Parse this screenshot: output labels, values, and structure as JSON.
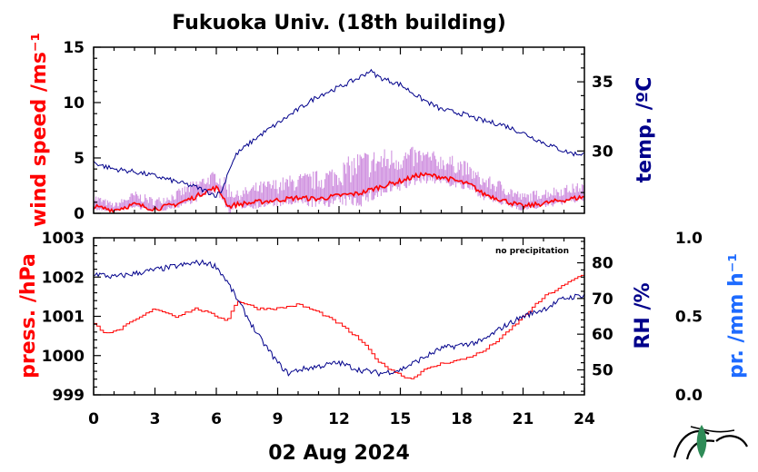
{
  "colors": {
    "wind_mean": "#ff0000",
    "wind_gust": "#cc88dd",
    "temperature": "#00008b",
    "pressure": "#ff0000",
    "humidity": "#00008b",
    "precip": "#1e6bff",
    "logo": "#2e8b57"
  },
  "chart_data": [
    {
      "type": "line",
      "title": "Fukuoka Univ. (18th building)",
      "xlim": [
        0,
        24
      ],
      "left_axis": {
        "label": "wind speed /ms⁻¹",
        "ylim": [
          0,
          15
        ],
        "ticks": [
          0,
          5,
          10,
          15
        ]
      },
      "right_axis": {
        "label": "temp. /ºC",
        "ylim": [
          25.5,
          37.5
        ],
        "ticks": [
          30,
          35
        ]
      },
      "series": [
        {
          "axis": "left",
          "role": "wind_mean",
          "x": [
            0,
            1,
            2,
            3,
            4,
            5,
            5.5,
            6,
            6.3,
            6.6,
            7,
            8,
            9,
            10,
            11,
            12,
            13,
            14,
            15,
            16,
            17,
            18,
            18.5,
            19,
            20,
            21,
            22,
            23,
            24
          ],
          "values": [
            0.6,
            0.3,
            0.8,
            0.4,
            0.8,
            1.5,
            2.0,
            2.3,
            1.6,
            0.6,
            0.8,
            1.0,
            1.2,
            1.4,
            1.3,
            1.6,
            1.8,
            2.4,
            2.9,
            3.5,
            3.3,
            2.8,
            2.5,
            1.8,
            1.2,
            0.6,
            0.9,
            1.2,
            1.5
          ]
        },
        {
          "axis": "left",
          "role": "wind_gust",
          "x": [
            0,
            1,
            2,
            3,
            4,
            5,
            6,
            7,
            8,
            9,
            10,
            11,
            12,
            13,
            14,
            15,
            16,
            17,
            18,
            19,
            20,
            21,
            22,
            23,
            24
          ],
          "values": [
            1.6,
            0.8,
            1.8,
            1.2,
            1.8,
            2.8,
            3.6,
            1.8,
            2.5,
            2.8,
            3.2,
            3.4,
            4.0,
            5.0,
            5.2,
            5.4,
            5.5,
            5.0,
            4.6,
            3.2,
            2.6,
            1.6,
            2.0,
            2.3,
            2.6
          ]
        },
        {
          "axis": "right",
          "role": "temperature",
          "x": [
            0,
            0.5,
            1,
            2,
            3,
            4,
            5,
            5.5,
            6,
            6.3,
            6.6,
            7,
            8,
            9,
            10,
            11,
            12,
            13,
            13.5,
            14,
            15,
            16,
            17,
            18,
            19,
            20,
            21,
            22,
            23,
            23.5,
            24
          ],
          "values": [
            29.2,
            28.9,
            28.7,
            28.5,
            28.2,
            27.8,
            27.4,
            27.1,
            26.8,
            27.2,
            28.6,
            29.8,
            31.0,
            32.0,
            33.0,
            34.0,
            34.6,
            35.3,
            35.8,
            35.3,
            34.8,
            33.8,
            33.0,
            32.7,
            32.2,
            31.9,
            31.3,
            30.6,
            30.0,
            29.8,
            29.8
          ]
        }
      ]
    },
    {
      "type": "line",
      "xlabel": "02 Aug 2024",
      "xlim": [
        0,
        24
      ],
      "xticks": [
        0,
        3,
        6,
        9,
        12,
        15,
        18,
        21,
        24
      ],
      "annotation": "no precipitation",
      "left_axis": {
        "label": "press. /hPa",
        "ylim": [
          999,
          1003
        ],
        "ticks": [
          999,
          1000,
          1001,
          1002,
          1003
        ]
      },
      "right_axis": {
        "label": "RH /%",
        "ylim": [
          43,
          87
        ],
        "ticks": [
          50,
          60,
          70,
          80
        ]
      },
      "far_right_axis": {
        "label": "pr. /mm h⁻¹",
        "ylim": [
          0.0,
          1.0
        ],
        "ticks": [
          "0.0",
          "0.5",
          "1.0"
        ]
      },
      "series": [
        {
          "axis": "left",
          "role": "pressure",
          "x": [
            0,
            0.5,
            1,
            2,
            3,
            4,
            5,
            6,
            6.5,
            7,
            8,
            9,
            10,
            11,
            12,
            13,
            14,
            15,
            15.5,
            16,
            17,
            18,
            19,
            20,
            21,
            22,
            23,
            24
          ],
          "values": [
            1000.8,
            1000.6,
            1000.6,
            1000.9,
            1001.2,
            1001.0,
            1001.2,
            1001.0,
            1000.9,
            1001.4,
            1001.2,
            1001.2,
            1001.3,
            1001.1,
            1000.8,
            1000.4,
            999.8,
            999.5,
            999.4,
            999.6,
            999.8,
            999.9,
            1000.1,
            1000.5,
            1001.0,
            1001.5,
            1001.8,
            1002.1
          ]
        },
        {
          "axis": "right",
          "role": "humidity",
          "x": [
            0,
            1,
            2,
            3,
            4,
            5,
            5.5,
            6,
            6.5,
            7,
            8,
            9,
            9.5,
            10,
            11,
            12,
            13,
            14,
            15,
            16,
            17,
            18,
            19,
            20,
            21,
            22,
            23,
            24
          ],
          "values": [
            77,
            76,
            77,
            78,
            79,
            80,
            80,
            79,
            75,
            70,
            60,
            52,
            49,
            50,
            51,
            52,
            50,
            49,
            50,
            53,
            56,
            57,
            58,
            62,
            65,
            67,
            70,
            71
          ]
        }
      ]
    }
  ]
}
